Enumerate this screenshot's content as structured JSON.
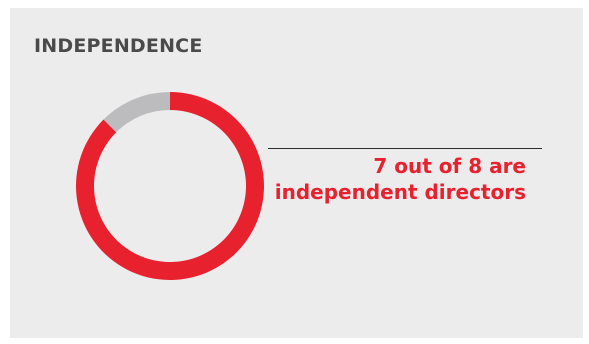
{
  "heading": "INDEPENDENCE",
  "colors": {
    "independent": "#e8212f",
    "other": "#bcbcbe",
    "background": "#ececec",
    "heading": "#4a4a4a"
  },
  "chart_data": {
    "type": "pie",
    "variant": "donut",
    "title": "INDEPENDENCE",
    "slices": [
      {
        "label": "independent directors",
        "value": 7,
        "color": "#e8212f"
      },
      {
        "label": "",
        "value": 1,
        "color": "#bcbcbe"
      }
    ],
    "total": 8,
    "annotation": {
      "line1": "7 out of 8 are",
      "line2": "independent directors"
    }
  }
}
